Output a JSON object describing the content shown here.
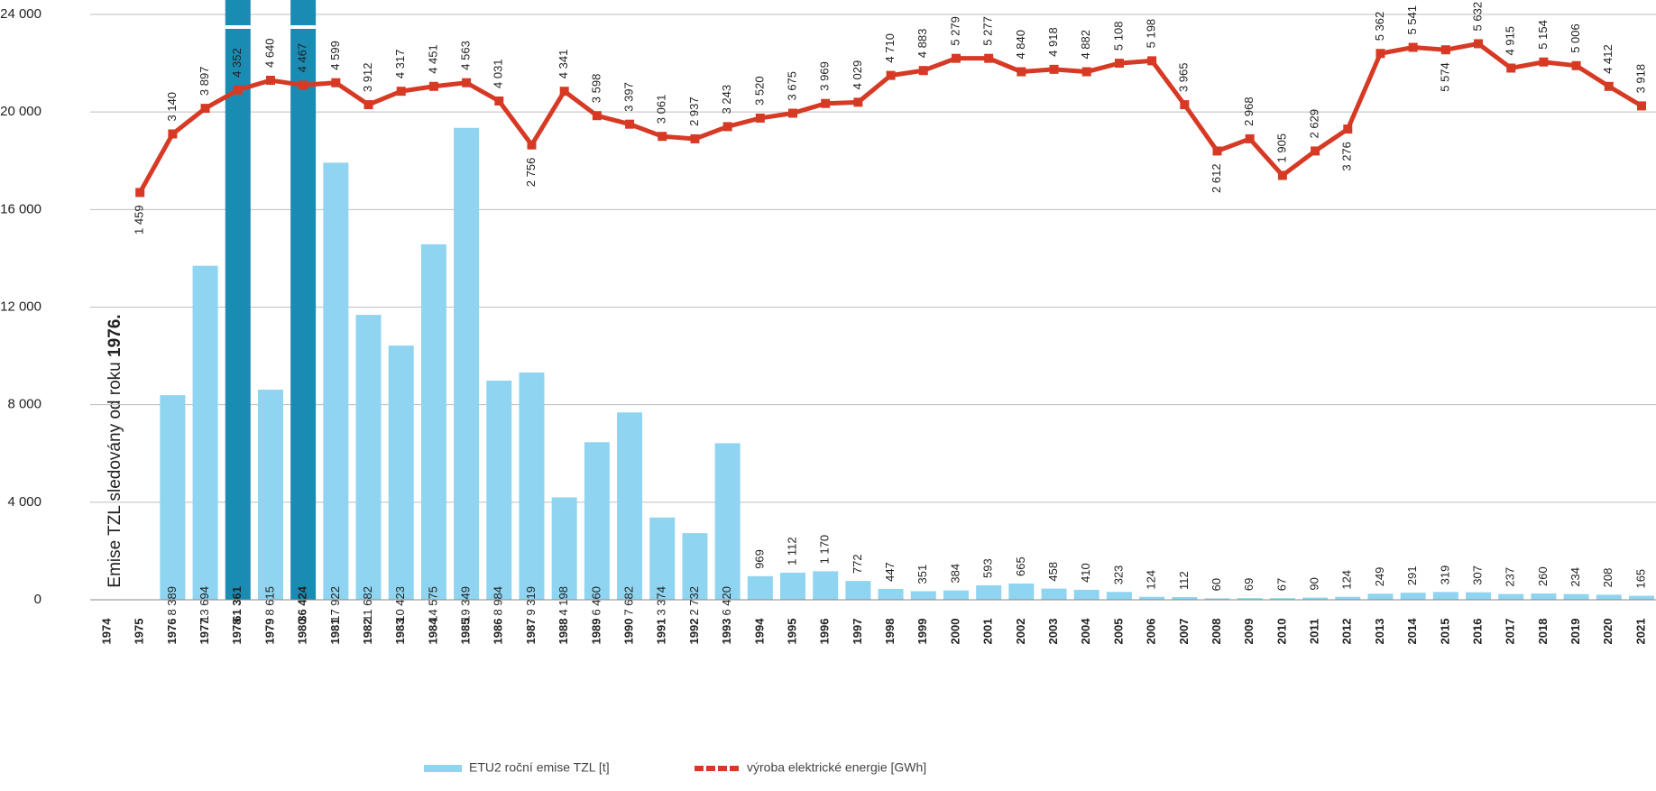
{
  "chart_data": {
    "type": "bar_line",
    "annotation": {
      "text": "Emise TZL sledovány od roku ",
      "bold": "1976."
    },
    "categories": [
      "1974",
      "1975",
      "1976",
      "1977",
      "1978",
      "1979",
      "1980",
      "1981",
      "1982",
      "1983",
      "1984",
      "1985",
      "1986",
      "1987",
      "1988",
      "1989",
      "1990",
      "1991",
      "1992",
      "1993",
      "1994",
      "1995",
      "1996",
      "1997",
      "1998",
      "1999",
      "2000",
      "2001",
      "2002",
      "2003",
      "2004",
      "2005",
      "2006",
      "2007",
      "2008",
      "2009",
      "2010",
      "2011",
      "2012",
      "2013",
      "2014",
      "2015",
      "2016",
      "2017",
      "2018",
      "2019",
      "2020",
      "2021"
    ],
    "ylim": [
      0,
      24000
    ],
    "yticks": [
      0,
      {
        "value": 4000,
        "label": "4 000"
      },
      {
        "value": 8000,
        "label": "8 000"
      },
      {
        "value": 12000,
        "label": "12 000"
      },
      {
        "value": 16000,
        "label": "16 000"
      },
      {
        "value": 20000,
        "label": "20 000"
      },
      {
        "value": 24000,
        "label": "24 000"
      }
    ],
    "grid": true,
    "series": [
      {
        "name": "ETU2 roční emise TZL [t]",
        "type": "bar",
        "color": "#8fd4f0",
        "colors": [
          null,
          null,
          "#8fd4f0",
          "#8fd4f0",
          "#1a8cb3",
          "#8fd4f0",
          "#1a8cb3",
          "#8fd4f0",
          "#8fd4f0",
          "#8fd4f0",
          "#8fd4f0",
          "#8fd4f0",
          "#8fd4f0",
          "#8fd4f0",
          "#8fd4f0",
          "#8fd4f0",
          "#8fd4f0",
          "#8fd4f0",
          "#8fd4f0",
          "#8fd4f0",
          "#8fd4f0",
          "#8fd4f0",
          "#8fd4f0",
          "#8fd4f0",
          "#8fd4f0",
          "#8fd4f0",
          "#8fd4f0",
          "#8fd4f0",
          "#8fd4f0",
          "#8fd4f0",
          "#8fd4f0",
          "#8fd4f0",
          "#8fd4f0",
          "#8fd4f0",
          "#8fd4f0",
          "#8fd4f0",
          "#8fd4f0",
          "#8fd4f0",
          "#8fd4f0",
          "#8fd4f0",
          "#8fd4f0",
          "#8fd4f0",
          "#8fd4f0",
          "#8fd4f0",
          "#8fd4f0",
          "#8fd4f0",
          "#8fd4f0",
          "#8fd4f0"
        ],
        "values": [
          null,
          null,
          8389,
          13694,
          61361,
          8615,
          36424,
          17922,
          11682,
          10423,
          14575,
          19349,
          8984,
          9319,
          4198,
          6460,
          7682,
          3374,
          2732,
          6420,
          969,
          1112,
          1170,
          772,
          447,
          351,
          384,
          593,
          665,
          458,
          410,
          323,
          124,
          112,
          60,
          69,
          67,
          90,
          124,
          249,
          291,
          319,
          307,
          237,
          260,
          234,
          208,
          165
        ],
        "value_labels": [
          null,
          null,
          "8 389",
          "13 694",
          "61 361",
          "8 615",
          "36 424",
          "17 922",
          "11 682",
          "10 423",
          "14 575",
          "19 349",
          "8 984",
          "9 319",
          "4 198",
          "6 460",
          "7 682",
          "3 374",
          "2 732",
          "6 420",
          "969",
          "1 112",
          "1 170",
          "772",
          "447",
          "351",
          "384",
          "593",
          "665",
          "458",
          "410",
          "323",
          "124",
          "112",
          "60",
          "69",
          "67",
          "90",
          "124",
          "249",
          "291",
          "319",
          "307",
          "237",
          "260",
          "234",
          "208",
          "165"
        ]
      },
      {
        "name": "výroba elektrické energie [GWh]",
        "type": "line",
        "color": "#d63a25",
        "values": [
          null,
          16700,
          19100,
          20150,
          20900,
          21300,
          21100,
          21200,
          20300,
          20850,
          21050,
          21200,
          20450,
          18650,
          20850,
          19850,
          19500,
          19000,
          18900,
          19400,
          19750,
          19950,
          20350,
          20400,
          21500,
          21700,
          22200,
          22200,
          21650,
          21750,
          21650,
          22000,
          22100,
          20300,
          18400,
          18900,
          17400,
          18400,
          19300,
          22400,
          22650,
          22550,
          22800,
          21800,
          22050,
          21900,
          21050,
          20250
        ],
        "point_labels": [
          null,
          "1 459",
          "3 140",
          "3 897",
          "4 352",
          "4 640",
          "4 467",
          "4 599",
          "3 912",
          "4 317",
          "4 451",
          "4 563",
          "4 031",
          "2 756",
          "4 341",
          "3 598",
          "3 397",
          "3 061",
          "2 937",
          "3 243",
          "3 520",
          "3 675",
          "3 969",
          "4 029",
          "4 710",
          "4 883",
          "5 279",
          "5 277",
          "4 840",
          "4 918",
          "4 882",
          "5 108",
          "5 198",
          "3 965",
          "2 612",
          "2 968",
          "1 905",
          "2 629",
          "3 276",
          "5 362",
          "5 541",
          "5 574",
          "5 632",
          "4 915",
          "5 154",
          "5 006",
          "4 412",
          "3 918"
        ]
      }
    ]
  }
}
